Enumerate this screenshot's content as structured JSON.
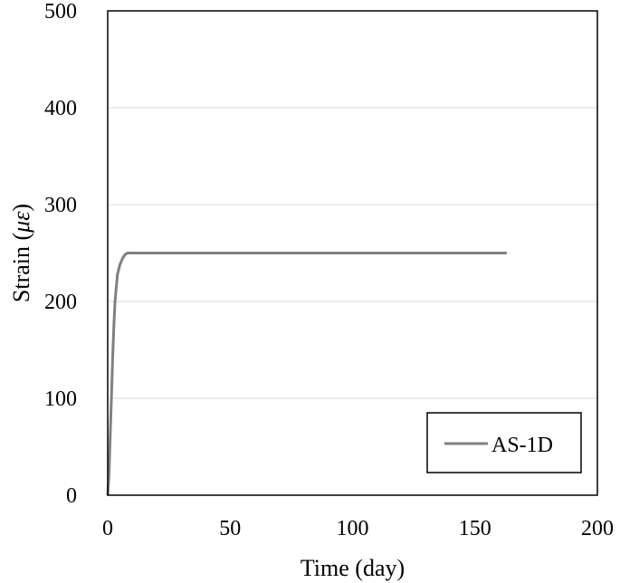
{
  "chart_data": {
    "type": "line",
    "title": "",
    "xlabel": "Time (day)",
    "ylabel_prefix": "Strain (",
    "ylabel_symbol": "με",
    "ylabel_suffix": ")",
    "xlim": [
      0,
      200
    ],
    "ylim": [
      0,
      500
    ],
    "xticks": [
      0,
      50,
      100,
      150,
      200
    ],
    "yticks": [
      0,
      100,
      200,
      300,
      400,
      500
    ],
    "grid": "horizontal",
    "legend_position": "bottom-right",
    "series": [
      {
        "name": "AS-1D",
        "color": "#808080",
        "x": [
          0,
          0.5,
          1,
          1.5,
          2,
          2.5,
          3,
          3.5,
          4,
          5,
          6,
          7,
          8,
          10,
          30,
          60,
          100,
          130,
          163
        ],
        "y": [
          0,
          20,
          60,
          100,
          140,
          175,
          200,
          215,
          228,
          238,
          244,
          248,
          250,
          250,
          250,
          250,
          250,
          250,
          250
        ]
      }
    ]
  }
}
